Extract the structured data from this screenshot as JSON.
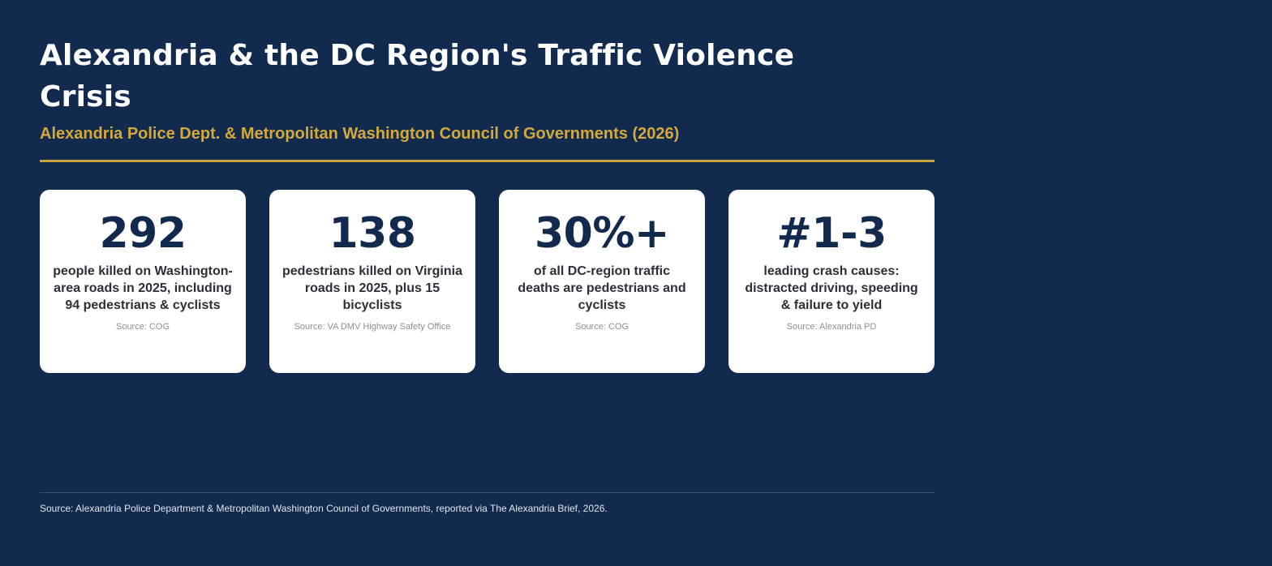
{
  "header": {
    "title": "Alexandria & the DC Region's Traffic Violence Crisis",
    "subtitle": "Alexandria Police Dept. & Metropolitan Washington Council of Governments (2026)"
  },
  "cards": [
    {
      "value": "292",
      "description": "people killed on Washington-area roads in 2025, including 94 pedestrians & cyclists",
      "source": "Source: COG"
    },
    {
      "value": "138",
      "description": "pedestrians killed on Virginia roads in 2025, plus 15 bicyclists",
      "source": "Source: VA DMV Highway Safety Office"
    },
    {
      "value": "30%+",
      "description": "of all DC-region traffic deaths are pedestrians and cyclists",
      "source": "Source: COG"
    },
    {
      "value": "#1-3",
      "description": "leading crash causes: distracted driving, speeding & failure to yield",
      "source": "Source: Alexandria PD"
    }
  ],
  "footer": {
    "text": "Source: Alexandria Police Department & Metropolitan Washington Council of Governments, reported via The Alexandria Brief, 2026."
  },
  "colors": {
    "background": "#112a4d",
    "accent_gold": "#d4a93c",
    "card_background": "#ffffff",
    "card_value": "#112a4d"
  }
}
